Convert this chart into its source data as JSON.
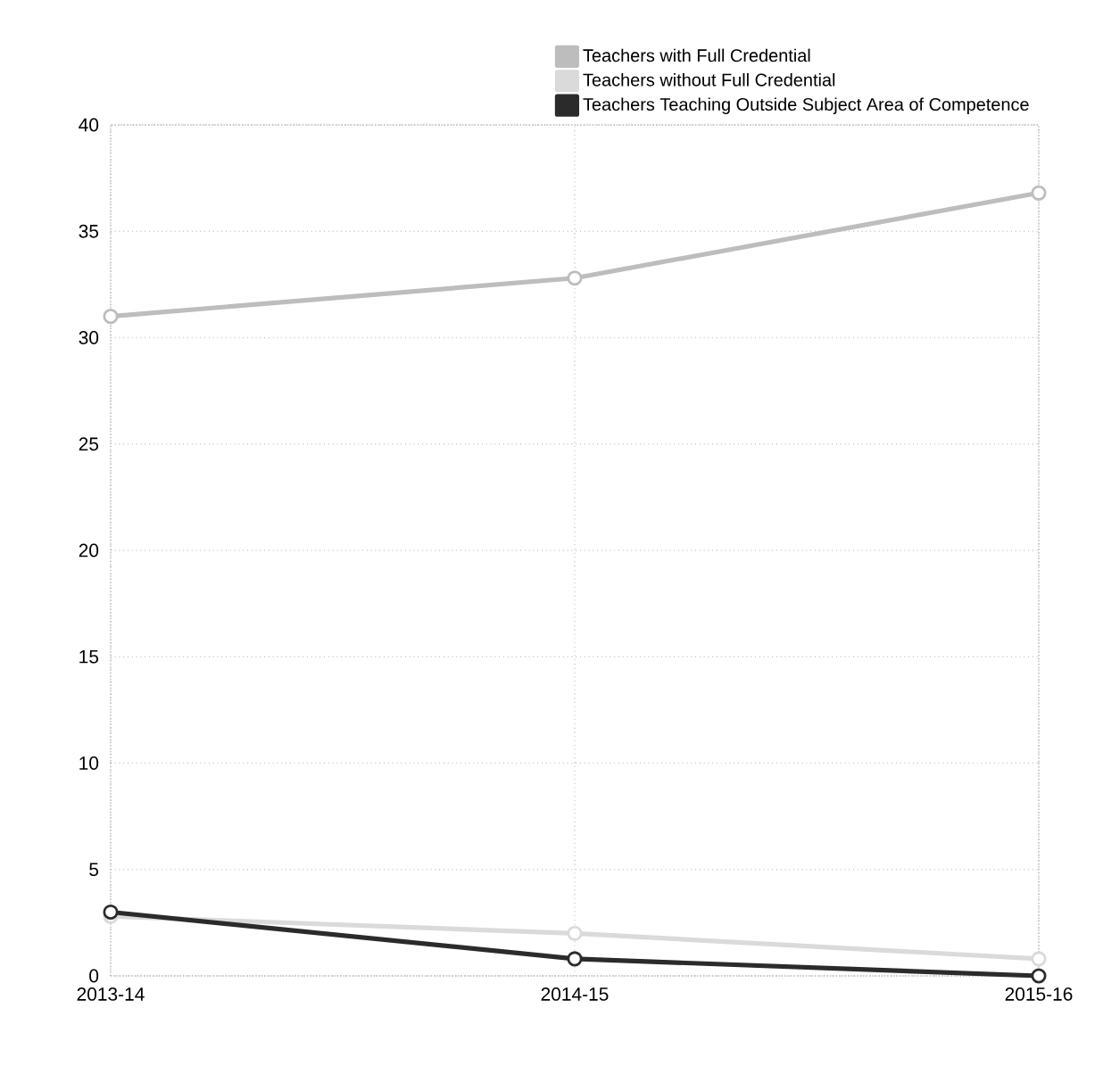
{
  "chart_data": {
    "type": "line",
    "categories": [
      "2013-14",
      "2014-15",
      "2015-16"
    ],
    "series": [
      {
        "name": "Teachers with Full Credential",
        "color": "#bdbdbd",
        "values": [
          31,
          32.8,
          36.8
        ]
      },
      {
        "name": "Teachers without Full Credential",
        "color": "#dadada",
        "values": [
          2.8,
          2,
          0.8
        ]
      },
      {
        "name": "Teachers Teaching Outside Subject Area of Competence",
        "color": "#2b2b2b",
        "values": [
          3,
          0.8,
          0
        ]
      }
    ],
    "ylim": [
      0,
      40
    ],
    "yticks": [
      0,
      5,
      10,
      15,
      20,
      25,
      30,
      35,
      40
    ],
    "grid": true,
    "legend": "top right",
    "marker": "circle",
    "line_style": "solid"
  }
}
